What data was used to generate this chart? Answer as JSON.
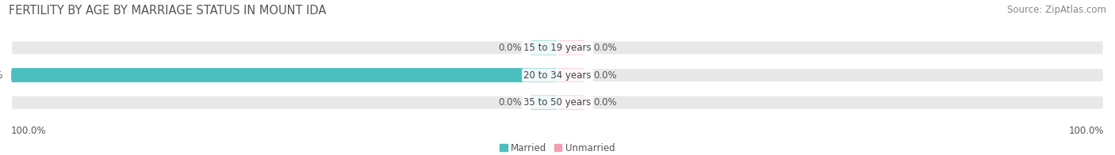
{
  "title": "FERTILITY BY AGE BY MARRIAGE STATUS IN MOUNT IDA",
  "source": "Source: ZipAtlas.com",
  "categories": [
    "15 to 19 years",
    "20 to 34 years",
    "35 to 50 years"
  ],
  "married_values": [
    0.0,
    100.0,
    0.0
  ],
  "unmarried_values": [
    0.0,
    0.0,
    0.0
  ],
  "married_color": "#4bbfbf",
  "unmarried_color": "#f4a0b0",
  "bar_bg_color": "#e8e8e8",
  "bar_height": 0.52,
  "title_fontsize": 10.5,
  "source_fontsize": 8.5,
  "label_fontsize": 8.5,
  "cat_fontsize": 8.5,
  "xlim": [
    -100,
    100
  ],
  "x_left_label": "100.0%",
  "x_right_label": "100.0%",
  "background_color": "#ffffff",
  "bar_gap": 0.15
}
